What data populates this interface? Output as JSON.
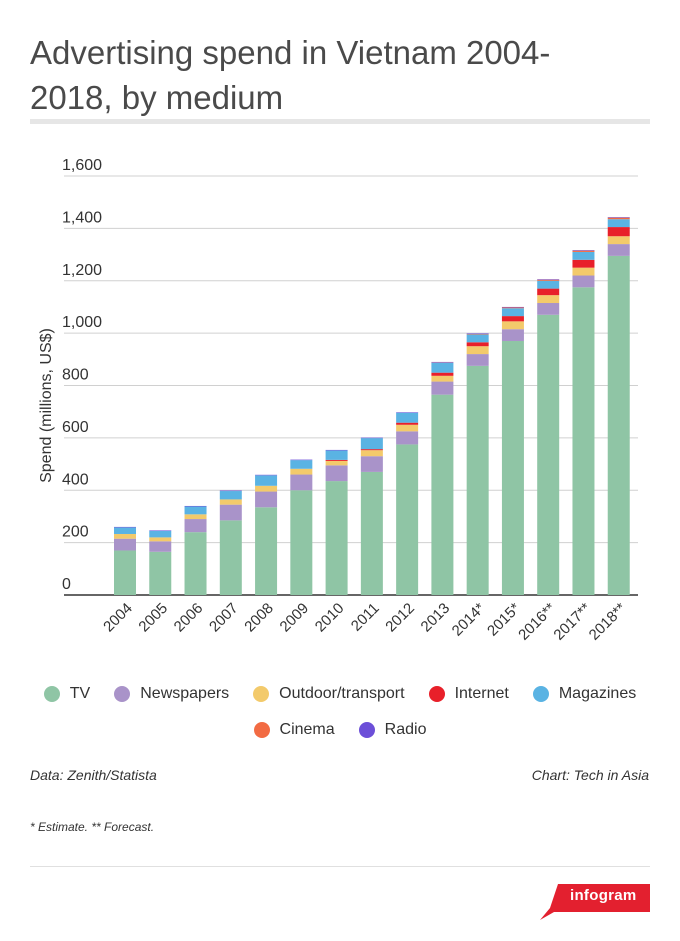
{
  "title": "Advertising spend in Vietnam 2004-2018, by medium",
  "source": "Data: Zenith/Statista",
  "credit": "Chart: Tech in Asia",
  "note": "* Estimate. ** Forecast.",
  "brand": "infogram",
  "chart_data": {
    "type": "bar",
    "stacked": true,
    "ylabel": "Spend (millions, US$)",
    "xlabel": "",
    "ylim": [
      0,
      1600
    ],
    "yticks": [
      0,
      200,
      400,
      600,
      800,
      1000,
      1200,
      1400,
      1600
    ],
    "grid": true,
    "legend_position": "bottom",
    "categories": [
      "2004",
      "2005",
      "2006",
      "2007",
      "2008",
      "2009",
      "2010",
      "2011",
      "2012",
      "2013",
      "2014*",
      "2015*",
      "2016**",
      "2017**",
      "2018**"
    ],
    "series": [
      {
        "name": "TV",
        "color": "#8fc5a5",
        "values": [
          170,
          165,
          240,
          285,
          335,
          400,
          435,
          470,
          575,
          765,
          875,
          970,
          1070,
          1175,
          1295
        ]
      },
      {
        "name": "Newspapers",
        "color": "#a993c9",
        "values": [
          45,
          40,
          50,
          60,
          60,
          60,
          60,
          60,
          50,
          50,
          45,
          45,
          45,
          45,
          45
        ]
      },
      {
        "name": "Outdoor/transport",
        "color": "#f3ca6b",
        "values": [
          18,
          15,
          18,
          20,
          22,
          22,
          17,
          23,
          25,
          22,
          30,
          30,
          30,
          30,
          30
        ]
      },
      {
        "name": "Internet",
        "color": "#e8202a",
        "values": [
          0,
          0,
          0,
          0,
          0,
          0,
          4,
          4,
          8,
          12,
          15,
          20,
          25,
          30,
          35
        ]
      },
      {
        "name": "Magazines",
        "color": "#5ab3e3",
        "values": [
          25,
          25,
          30,
          32,
          40,
          33,
          36,
          42,
          38,
          38,
          30,
          30,
          30,
          30,
          30
        ]
      },
      {
        "name": "Cinema",
        "color": "#f26b43",
        "values": [
          0,
          0,
          0,
          0,
          0,
          0,
          0,
          0,
          0,
          1,
          2,
          3,
          4,
          5,
          6
        ]
      },
      {
        "name": "Radio",
        "color": "#6c4fd8",
        "values": [
          2,
          2,
          2,
          2,
          2,
          2,
          2,
          2,
          2,
          2,
          2,
          2,
          2,
          2,
          2
        ]
      }
    ]
  }
}
